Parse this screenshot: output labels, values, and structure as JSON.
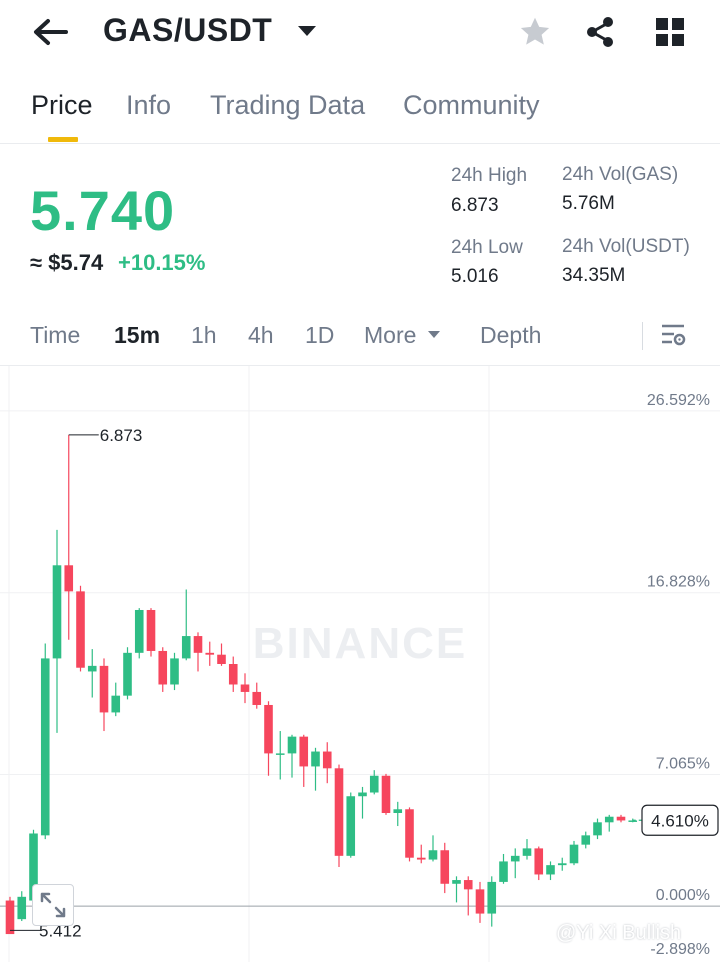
{
  "header": {
    "pair": "GAS/USDT",
    "icons": [
      "back-arrow-icon",
      "caret-down-icon",
      "star-icon",
      "share-icon",
      "grid-icon"
    ]
  },
  "tabs": [
    {
      "label": "Price",
      "active": true
    },
    {
      "label": "Info",
      "active": false
    },
    {
      "label": "Trading Data",
      "active": false
    },
    {
      "label": "Community",
      "active": false
    }
  ],
  "price": {
    "last": "5.740",
    "fiat": "≈ $5.74",
    "change": "+10.15%"
  },
  "stats": {
    "high_label": "24h High",
    "high_value": "6.873",
    "low_label": "24h Low",
    "low_value": "5.016",
    "vol_base_label": "24h Vol(GAS)",
    "vol_base_value": "5.76M",
    "vol_quote_label": "24h Vol(USDT)",
    "vol_quote_value": "34.35M"
  },
  "intervals": [
    {
      "label": "Time",
      "active": false
    },
    {
      "label": "15m",
      "active": true
    },
    {
      "label": "1h",
      "active": false
    },
    {
      "label": "4h",
      "active": false
    },
    {
      "label": "1D",
      "active": false
    },
    {
      "label": "More",
      "active": false
    },
    {
      "label": "Depth",
      "active": false
    }
  ],
  "colors": {
    "up": "#2ebd85",
    "down": "#f6465d",
    "accent": "#f0b90b",
    "text_primary": "#1e2329",
    "text_secondary": "#707a8a"
  },
  "chart_data": {
    "type": "candlestick",
    "y_axis_unit": "percent",
    "y_tick_labels": [
      "26.592%",
      "16.828%",
      "7.065%",
      "0.000%",
      "-2.898%"
    ],
    "y_ticks": [
      26.592,
      16.828,
      7.065,
      0.0,
      -2.898
    ],
    "ylim": [
      -3.0,
      29.0
    ],
    "current_label": "4.610%",
    "current_value": 4.61,
    "high_label": "6.873",
    "low_label": "5.412",
    "watermark": "BINANCE",
    "grid": true,
    "candles": [
      [
        0.3,
        0.5,
        -1.3,
        -1.5
      ],
      [
        -0.7,
        0.8,
        -0.8,
        0.5
      ],
      [
        0.3,
        4.1,
        -0.2,
        3.9
      ],
      [
        3.8,
        14.1,
        3.6,
        13.3
      ],
      [
        13.3,
        20.2,
        9.3,
        18.3
      ],
      [
        18.3,
        25.3,
        14.3,
        16.9
      ],
      [
        16.9,
        17.2,
        12.6,
        12.8
      ],
      [
        12.6,
        13.8,
        11.2,
        12.9
      ],
      [
        12.9,
        13.3,
        9.4,
        10.4
      ],
      [
        10.4,
        12.0,
        10.2,
        11.3
      ],
      [
        11.3,
        13.9,
        11.1,
        13.6
      ],
      [
        13.6,
        16.0,
        13.3,
        15.9
      ],
      [
        15.9,
        16.0,
        13.4,
        13.7
      ],
      [
        13.7,
        13.9,
        11.5,
        11.9
      ],
      [
        11.9,
        13.6,
        11.6,
        13.3
      ],
      [
        13.3,
        17.0,
        13.2,
        14.5
      ],
      [
        14.5,
        14.7,
        12.6,
        13.6
      ],
      [
        13.6,
        14.2,
        12.9,
        13.5
      ],
      [
        13.5,
        14.1,
        12.9,
        13.0
      ],
      [
        13.0,
        13.4,
        11.5,
        11.9
      ],
      [
        11.9,
        12.5,
        10.9,
        11.5
      ],
      [
        11.5,
        12.0,
        10.6,
        10.8
      ],
      [
        10.8,
        11.0,
        7.0,
        8.2
      ],
      [
        8.2,
        9.4,
        6.8,
        8.2
      ],
      [
        8.2,
        9.2,
        6.9,
        9.1
      ],
      [
        9.1,
        9.2,
        6.4,
        7.5
      ],
      [
        7.5,
        8.5,
        6.2,
        8.3
      ],
      [
        8.3,
        8.8,
        6.6,
        7.4
      ],
      [
        7.4,
        7.6,
        2.1,
        2.7
      ],
      [
        2.7,
        6.1,
        2.6,
        5.9
      ],
      [
        5.9,
        6.4,
        4.7,
        6.1
      ],
      [
        6.1,
        7.3,
        6.0,
        7.0
      ],
      [
        7.0,
        7.1,
        4.9,
        5.0
      ],
      [
        5.0,
        5.6,
        4.3,
        5.2
      ],
      [
        5.2,
        5.3,
        2.4,
        2.6
      ],
      [
        2.6,
        3.3,
        2.3,
        2.5
      ],
      [
        2.5,
        3.8,
        2.4,
        3.0
      ],
      [
        3.0,
        3.4,
        0.7,
        1.2
      ],
      [
        1.2,
        1.6,
        0.2,
        1.4
      ],
      [
        1.4,
        1.6,
        -0.5,
        0.9
      ],
      [
        0.9,
        1.3,
        -0.9,
        -0.4
      ],
      [
        -0.4,
        1.6,
        -1.1,
        1.3
      ],
      [
        1.3,
        2.8,
        1.2,
        2.4
      ],
      [
        2.4,
        3.1,
        1.5,
        2.7
      ],
      [
        2.7,
        3.6,
        2.5,
        3.1
      ],
      [
        3.1,
        3.2,
        1.4,
        1.7
      ],
      [
        1.7,
        2.4,
        1.4,
        2.2
      ],
      [
        2.2,
        2.6,
        1.9,
        2.3
      ],
      [
        2.3,
        3.5,
        2.2,
        3.3
      ],
      [
        3.3,
        4.0,
        3.1,
        3.8
      ],
      [
        3.8,
        4.7,
        3.6,
        4.5
      ],
      [
        4.5,
        4.9,
        4.0,
        4.8
      ],
      [
        4.8,
        4.9,
        4.5,
        4.6
      ],
      [
        4.6,
        4.7,
        4.5,
        4.6
      ]
    ]
  }
}
